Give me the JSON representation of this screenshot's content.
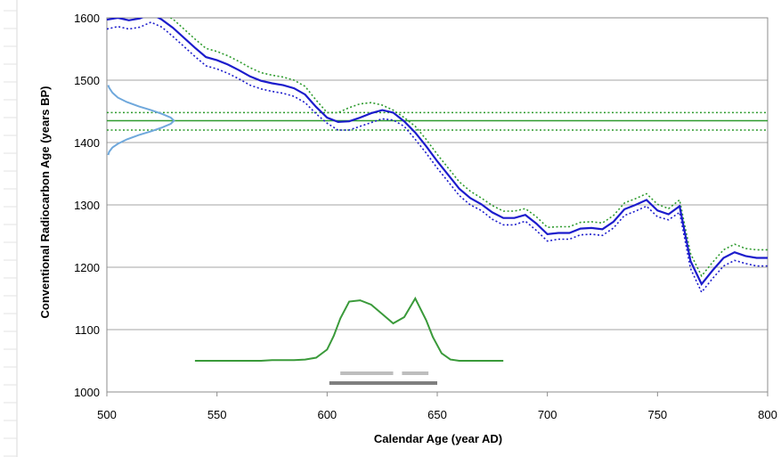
{
  "chart_data": {
    "type": "line",
    "xlabel": "Calendar Age (year AD)",
    "ylabel": "Conventional Radiocarbon Age (years BP)",
    "xlim": [
      500,
      800
    ],
    "ylim": [
      1000,
      1600
    ],
    "xticks": [
      500,
      550,
      600,
      650,
      700,
      750,
      800
    ],
    "yticks": [
      1000,
      1100,
      1200,
      1300,
      1400,
      1500,
      1600
    ],
    "grid": "horizontal",
    "colors": {
      "calibration": "#1c1ccc",
      "calibration_bounds": "#1c1ccc",
      "sample_bounds": "#2e9b2e",
      "sample_age": "#2e9b2e",
      "probability": "#3a9a3a",
      "radiocarbon_distribution": "#6fa8dc",
      "range_68": "#bdbdbd",
      "range_95": "#7f7f7f"
    },
    "sample_age": 1435,
    "sample_age_bounds": [
      1420,
      1448
    ],
    "calibration_curve": {
      "x": [
        500,
        505,
        510,
        515,
        520,
        525,
        530,
        535,
        540,
        545,
        550,
        555,
        560,
        565,
        570,
        575,
        580,
        585,
        590,
        595,
        600,
        605,
        610,
        615,
        620,
        625,
        630,
        635,
        640,
        645,
        650,
        655,
        660,
        665,
        670,
        675,
        680,
        685,
        690,
        695,
        700,
        705,
        710,
        715,
        720,
        725,
        730,
        735,
        740,
        745,
        750,
        755,
        760,
        765,
        770,
        775,
        780,
        785,
        790,
        795,
        800
      ],
      "y": [
        1597,
        1600,
        1596,
        1599,
        1607,
        1597,
        1584,
        1568,
        1552,
        1537,
        1532,
        1525,
        1516,
        1506,
        1499,
        1495,
        1492,
        1487,
        1477,
        1457,
        1440,
        1433,
        1434,
        1440,
        1447,
        1452,
        1448,
        1434,
        1416,
        1394,
        1370,
        1348,
        1326,
        1311,
        1301,
        1288,
        1279,
        1279,
        1284,
        1270,
        1253,
        1255,
        1255,
        1262,
        1263,
        1261,
        1273,
        1293,
        1300,
        1308,
        1291,
        1285,
        1298,
        1210,
        1173,
        1195,
        1215,
        1224,
        1218,
        1215,
        1215
      ]
    },
    "calibration_upper": {
      "x": [
        500,
        505,
        510,
        515,
        520,
        525,
        530,
        535,
        540,
        545,
        550,
        555,
        560,
        565,
        570,
        575,
        580,
        585,
        590,
        595,
        600,
        605,
        610,
        615,
        620,
        625,
        630,
        635,
        640,
        645,
        650,
        655,
        660,
        665,
        670,
        675,
        680,
        685,
        690,
        695,
        700,
        705,
        710,
        715,
        720,
        725,
        730,
        735,
        740,
        745,
        750,
        755,
        760,
        765,
        770,
        775,
        780,
        785,
        790,
        795,
        800
      ],
      "y": [
        1612,
        1612,
        1610,
        1613,
        1620,
        1608,
        1598,
        1582,
        1566,
        1551,
        1546,
        1539,
        1530,
        1520,
        1512,
        1508,
        1505,
        1500,
        1490,
        1468,
        1448,
        1448,
        1456,
        1462,
        1464,
        1460,
        1452,
        1440,
        1426,
        1405,
        1381,
        1359,
        1337,
        1322,
        1311,
        1299,
        1290,
        1290,
        1294,
        1281,
        1264,
        1265,
        1265,
        1272,
        1273,
        1271,
        1283,
        1303,
        1310,
        1318,
        1301,
        1294,
        1308,
        1222,
        1186,
        1208,
        1228,
        1237,
        1230,
        1228,
        1228
      ]
    },
    "calibration_lower": {
      "x": [
        500,
        505,
        510,
        515,
        520,
        525,
        530,
        535,
        540,
        545,
        550,
        555,
        560,
        565,
        570,
        575,
        580,
        585,
        590,
        595,
        600,
        605,
        610,
        615,
        620,
        625,
        630,
        635,
        640,
        645,
        650,
        655,
        660,
        665,
        670,
        675,
        680,
        685,
        690,
        695,
        700,
        705,
        710,
        715,
        720,
        725,
        730,
        735,
        740,
        745,
        750,
        755,
        760,
        765,
        770,
        775,
        780,
        785,
        790,
        795,
        800
      ],
      "y": [
        1582,
        1586,
        1582,
        1585,
        1593,
        1585,
        1570,
        1554,
        1538,
        1523,
        1518,
        1511,
        1502,
        1492,
        1486,
        1482,
        1479,
        1474,
        1464,
        1446,
        1431,
        1420,
        1420,
        1426,
        1432,
        1438,
        1436,
        1426,
        1405,
        1383,
        1359,
        1337,
        1315,
        1300,
        1291,
        1277,
        1268,
        1268,
        1274,
        1259,
        1242,
        1245,
        1245,
        1252,
        1253,
        1251,
        1263,
        1283,
        1290,
        1298,
        1281,
        1276,
        1288,
        1198,
        1160,
        1182,
        1202,
        1211,
        1206,
        1202,
        1202
      ]
    },
    "calendar_probability": {
      "x": [
        540,
        550,
        560,
        570,
        575,
        580,
        585,
        590,
        595,
        600,
        603,
        606,
        610,
        615,
        620,
        625,
        630,
        635,
        640,
        645,
        648,
        652,
        656,
        660,
        670,
        680
      ],
      "y": [
        1050,
        1050,
        1050,
        1050,
        1051,
        1051,
        1051,
        1052,
        1055,
        1068,
        1090,
        1118,
        1145,
        1147,
        1140,
        1125,
        1110,
        1120,
        1150,
        1115,
        1088,
        1062,
        1052,
        1050,
        1050,
        1050
      ]
    },
    "radiocarbon_distribution": {
      "y": [
        1380,
        1385,
        1392,
        1398,
        1405,
        1412,
        1418,
        1424,
        1430,
        1435,
        1440,
        1446,
        1452,
        1458,
        1465,
        1472,
        1480,
        1488,
        1492
      ],
      "x": [
        500.6,
        501.0,
        502.5,
        505.0,
        509.0,
        514.5,
        520.0,
        525.0,
        529.0,
        530.5,
        529.0,
        525.0,
        520.0,
        514.5,
        509.0,
        505.0,
        502.5,
        501.0,
        500.6
      ]
    },
    "ranges_68": [
      [
        606,
        630
      ],
      [
        634,
        646
      ]
    ],
    "ranges_95": [
      [
        601,
        650
      ]
    ]
  }
}
